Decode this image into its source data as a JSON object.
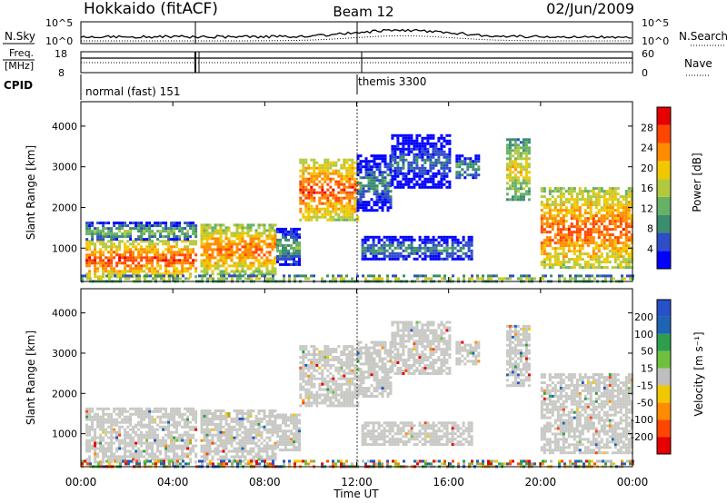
{
  "header": {
    "station": "Hokkaido (fitACF)",
    "beam": "Beam 12",
    "date": "02/Jun/2009"
  },
  "sky_panel": {
    "left_label": "N.Sky",
    "right_label": "N.Search",
    "left_ticks": [
      "10^5",
      "10^0"
    ],
    "right_ticks": [
      "10^5",
      "10^0"
    ]
  },
  "freq_panel": {
    "left_label_1": "Freq.",
    "left_label_2": "[MHz]",
    "right_label": "Nave",
    "left_ticks": [
      "18",
      "8"
    ],
    "right_ticks": [
      "60",
      "0"
    ]
  },
  "cpid_panel": {
    "label": "CPID",
    "modes": [
      {
        "name": "normal (fast) 151",
        "start_hour": 0
      },
      {
        "name": "themis 3300",
        "start_hour": 12
      }
    ]
  },
  "x_axis": {
    "title": "Time UT",
    "ticks": [
      "00:00",
      "04:00",
      "08:00",
      "12:00",
      "16:00",
      "20:00",
      "00:00"
    ],
    "range_hours": [
      0,
      24
    ]
  },
  "power_panel": {
    "ylabel": "Slant Range [km]",
    "yticks": [
      "1000",
      "2000",
      "3000",
      "4000"
    ],
    "colorbar_title": "Power [dB]",
    "colorbar_ticks": [
      "4",
      "8",
      "12",
      "16",
      "20",
      "24",
      "28"
    ],
    "colors": [
      "#0000ff",
      "#2e4dc8",
      "#3c8c6e",
      "#66b166",
      "#b4c83c",
      "#f0c800",
      "#ff8c00",
      "#ff4600",
      "#e60000"
    ]
  },
  "velocity_panel": {
    "ylabel": "Slant Range [km]",
    "yticks": [
      "1000",
      "2000",
      "3000",
      "4000"
    ],
    "colorbar_title": "Velocity [m s⁻¹]",
    "colorbar_ticks": [
      "200",
      "100",
      "50",
      "15",
      "-15",
      "-50",
      "-100",
      "-200"
    ],
    "colors": [
      "#2850c8",
      "#1e64b4",
      "#2e9e4e",
      "#70c040",
      "#bebebe",
      "#f0c800",
      "#ff8c00",
      "#ff4600",
      "#e60000"
    ],
    "ground_scatter_color": "#c8c8c4"
  },
  "chart_data": {
    "type": "heatmap",
    "title": "Hokkaido (fitACF) Beam 12 02/Jun/2009",
    "xlabel": "Time UT",
    "ylabel": "Slant Range [km]",
    "xlim_hours": [
      0,
      24
    ],
    "ylim_km": [
      180,
      4600
    ],
    "scatter_regions": [
      {
        "t0": 0.2,
        "t1": 5.0,
        "r0": 300,
        "r1": 1200,
        "power_db": 27,
        "velocity": "ground"
      },
      {
        "t0": 0.2,
        "t1": 5.0,
        "r0": 1200,
        "r1": 1650,
        "power_db": 14,
        "velocity": "ground"
      },
      {
        "t0": 5.2,
        "t1": 8.5,
        "r0": 350,
        "r1": 1600,
        "power_db": 25,
        "velocity": "ground"
      },
      {
        "t0": 8.5,
        "t1": 9.5,
        "r0": 600,
        "r1": 1500,
        "power_db": 12,
        "velocity": "ground"
      },
      {
        "t0": 9.5,
        "t1": 12.0,
        "r0": 1700,
        "r1": 3200,
        "power_db": 27,
        "velocity": "ground"
      },
      {
        "t0": 12.0,
        "t1": 13.5,
        "r0": 1900,
        "r1": 3300,
        "power_db": 10,
        "velocity": "ground"
      },
      {
        "t0": 12.2,
        "t1": 17.0,
        "r0": 700,
        "r1": 1300,
        "power_db": 10,
        "velocity": "ground"
      },
      {
        "t0": 13.5,
        "t1": 16.0,
        "r0": 2500,
        "r1": 3800,
        "power_db": 8,
        "velocity": "ground"
      },
      {
        "t0": 16.3,
        "t1": 17.3,
        "r0": 2700,
        "r1": 3300,
        "power_db": 12,
        "velocity": "ground"
      },
      {
        "t0": 18.5,
        "t1": 19.5,
        "r0": 2200,
        "r1": 3700,
        "power_db": 20,
        "velocity": "ground"
      },
      {
        "t0": 20.0,
        "t1": 24.0,
        "r0": 500,
        "r1": 2500,
        "power_db": 26,
        "velocity": "ground"
      },
      {
        "t0": 0.0,
        "t1": 24.0,
        "r0": 190,
        "r1": 350,
        "power_db": 18,
        "velocity": "mixed"
      }
    ]
  }
}
